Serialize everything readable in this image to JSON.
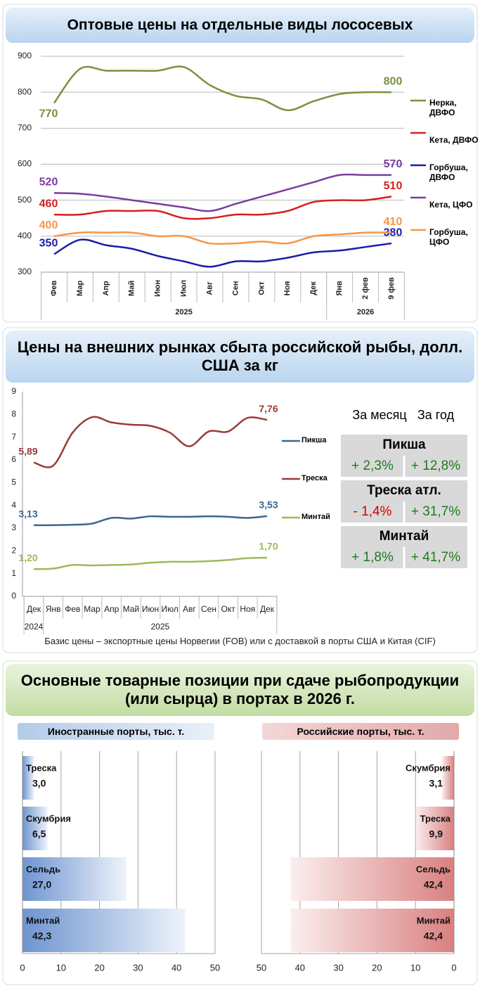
{
  "chart_data": [
    {
      "type": "line",
      "title": "Оптовые цены на отдельные виды лососевых",
      "categories": [
        "Фев",
        "Мар",
        "Апр",
        "Май",
        "Июн",
        "Июл",
        "Авг",
        "Сен",
        "Окт",
        "Ноя",
        "Дек",
        "Янв",
        "2 фев",
        "9 фев"
      ],
      "groups": [
        "2025",
        "2026"
      ],
      "ylim": [
        300,
        900
      ],
      "yticks": [
        300,
        400,
        500,
        600,
        700,
        800,
        900
      ],
      "grid": true,
      "series": [
        {
          "name": "Нерка, ДВФО",
          "color": "#77933c",
          "values": [
            770,
            865,
            860,
            860,
            860,
            870,
            820,
            790,
            780,
            750,
            775,
            795,
            800,
            800
          ]
        },
        {
          "name": "Кета, ДВФО",
          "color": "#d42020",
          "values": [
            460,
            460,
            470,
            470,
            470,
            450,
            450,
            460,
            460,
            470,
            495,
            500,
            500,
            510
          ]
        },
        {
          "name": "Горбуша, ДВФО",
          "color": "#1c1ca8",
          "values": [
            350,
            390,
            375,
            365,
            345,
            330,
            315,
            330,
            330,
            340,
            355,
            360,
            370,
            380
          ]
        },
        {
          "name": "Кета, ЦФО",
          "color": "#7a3ca0",
          "values": [
            520,
            518,
            510,
            500,
            490,
            480,
            470,
            490,
            510,
            530,
            550,
            570,
            570,
            570
          ]
        },
        {
          "name": "Горбуша, ЦФО",
          "color": "#f79646",
          "values": [
            400,
            410,
            410,
            410,
            400,
            400,
            380,
            380,
            385,
            380,
            400,
            405,
            410,
            410
          ]
        }
      ]
    },
    {
      "type": "line",
      "title": "Цены на внешних рынках сбыта российской рыбы, долл. США за кг",
      "categories": [
        "Дек",
        "Янв",
        "Фев",
        "Мар",
        "Апр",
        "Май",
        "Июн",
        "Июл",
        "Авг",
        "Сен",
        "Окт",
        "Ноя",
        "Дек"
      ],
      "groups": [
        "2024",
        "2025"
      ],
      "ylim": [
        0,
        9
      ],
      "yticks": [
        0,
        1,
        2,
        3,
        4,
        5,
        6,
        7,
        8,
        9
      ],
      "grid": false,
      "series": [
        {
          "name": "Пикша",
          "color": "#3b6690",
          "values": [
            3.13,
            3.13,
            3.15,
            3.2,
            3.45,
            3.42,
            3.52,
            3.5,
            3.5,
            3.52,
            3.5,
            3.45,
            3.53
          ],
          "value_labels": [
            "3,13",
            null,
            null,
            null,
            null,
            null,
            null,
            null,
            null,
            null,
            null,
            null,
            "3,53"
          ]
        },
        {
          "name": "Треска",
          "color": "#9b3a3a",
          "values": [
            5.89,
            5.75,
            7.2,
            7.88,
            7.65,
            7.55,
            7.5,
            7.2,
            6.6,
            7.25,
            7.25,
            7.85,
            7.76
          ],
          "value_labels": [
            "5,89",
            null,
            null,
            null,
            null,
            null,
            null,
            null,
            null,
            null,
            null,
            null,
            "7,76"
          ]
        },
        {
          "name": "Минтай",
          "color": "#9bbb59",
          "values": [
            1.2,
            1.22,
            1.38,
            1.36,
            1.38,
            1.4,
            1.48,
            1.52,
            1.52,
            1.55,
            1.6,
            1.68,
            1.7
          ],
          "value_labels": [
            "1,20",
            null,
            null,
            null,
            null,
            null,
            null,
            null,
            null,
            null,
            null,
            null,
            "1,70"
          ]
        }
      ]
    },
    {
      "type": "bar",
      "orientation": "horizontal",
      "title": "Основные товарные позиции при сдаче рыбопродукции (или сырца) в портах в 2026 г.",
      "subtitle": "Иностранные порты, тыс. т.",
      "color": "#5b84c8",
      "categories": [
        "Треска",
        "Скумбрия",
        "Сельдь",
        "Минтай"
      ],
      "values": [
        3.0,
        6.5,
        27.0,
        42.3
      ],
      "value_labels": [
        "3,0",
        "6,5",
        "27,0",
        "42,3"
      ],
      "xlim": [
        0,
        50
      ],
      "xticks": [
        0,
        10,
        20,
        30,
        40,
        50
      ],
      "grid": true
    },
    {
      "type": "bar",
      "orientation": "horizontal",
      "subtitle": "Российские порты, тыс. т.",
      "color": "#d98080",
      "categories": [
        "Скумбрия",
        "Треска",
        "Сельдь",
        "Минтай"
      ],
      "values": [
        3.1,
        9.9,
        42.4,
        42.4
      ],
      "value_labels": [
        "3,1",
        "9,9",
        "42,4",
        "42,4"
      ],
      "xlim": [
        50,
        0
      ],
      "xticks": [
        50,
        40,
        30,
        20,
        10,
        0
      ],
      "grid": true
    }
  ],
  "table": {
    "columns": [
      "За месяц",
      "За год"
    ],
    "rows": [
      {
        "name": "Пикша",
        "values": [
          "+ 2,3%",
          "+ 12,8%"
        ]
      },
      {
        "name": "Треска атл.",
        "values": [
          "- 1,4%",
          "+ 31,7%"
        ]
      },
      {
        "name": "Минтай",
        "values": [
          "+ 1,8%",
          "+ 41,7%"
        ]
      }
    ]
  },
  "footnote": "Базис цены – экспортные цены Норвегии (FOB) или с доставкой в порты США и Китая (CIF)"
}
